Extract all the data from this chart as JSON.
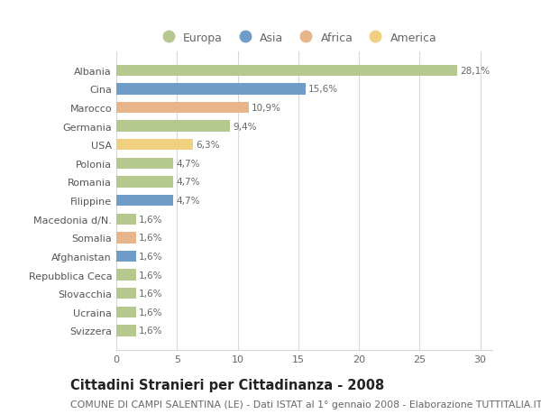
{
  "categories": [
    "Albania",
    "Cina",
    "Marocco",
    "Germania",
    "USA",
    "Polonia",
    "Romania",
    "Filippine",
    "Macedonia d/N.",
    "Somalia",
    "Afghanistan",
    "Repubblica Ceca",
    "Slovacchia",
    "Ucraina",
    "Svizzera"
  ],
  "values": [
    28.1,
    15.6,
    10.9,
    9.4,
    6.3,
    4.7,
    4.7,
    4.7,
    1.6,
    1.6,
    1.6,
    1.6,
    1.6,
    1.6,
    1.6
  ],
  "labels": [
    "28,1%",
    "15,6%",
    "10,9%",
    "9,4%",
    "6,3%",
    "4,7%",
    "4,7%",
    "4,7%",
    "1,6%",
    "1,6%",
    "1,6%",
    "1,6%",
    "1,6%",
    "1,6%",
    "1,6%"
  ],
  "colors": [
    "#b5c98e",
    "#6f9dc8",
    "#e8b48a",
    "#b5c98e",
    "#f0d080",
    "#b5c98e",
    "#b5c98e",
    "#6f9dc8",
    "#b5c98e",
    "#e8b48a",
    "#6f9dc8",
    "#b5c98e",
    "#b5c98e",
    "#b5c98e",
    "#b5c98e"
  ],
  "legend_labels": [
    "Europa",
    "Asia",
    "Africa",
    "America"
  ],
  "legend_colors": [
    "#b5c98e",
    "#6f9dc8",
    "#e8b48a",
    "#f0d080"
  ],
  "title": "Cittadini Stranieri per Cittadinanza - 2008",
  "subtitle": "COMUNE DI CAMPI SALENTINA (LE) - Dati ISTAT al 1° gennaio 2008 - Elaborazione TUTTITALIA.IT",
  "xlim": [
    0,
    31
  ],
  "xticks": [
    0,
    5,
    10,
    15,
    20,
    25,
    30
  ],
  "background_color": "#ffffff",
  "grid_color": "#d8d8d8",
  "bar_height": 0.6,
  "title_fontsize": 10.5,
  "subtitle_fontsize": 7.8,
  "label_fontsize": 7.5,
  "tick_fontsize": 8,
  "legend_fontsize": 9
}
